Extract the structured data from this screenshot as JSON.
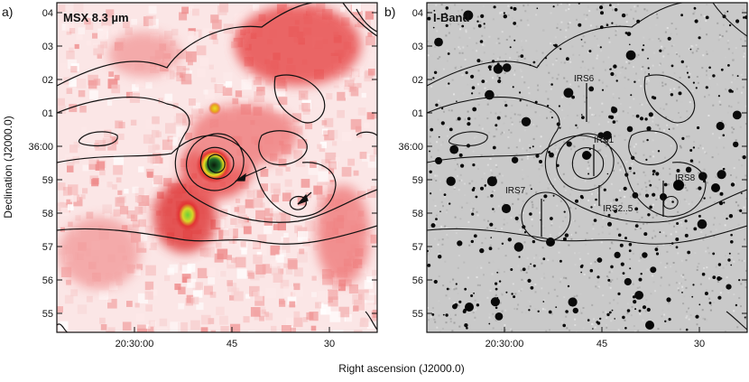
{
  "panels": [
    {
      "id": "a",
      "tag": "a)",
      "title": "MSX 8.3 µm",
      "y_ticks": [
        "04",
        "03",
        "02",
        "01",
        "36:00",
        "59",
        "58",
        "57",
        "56",
        "55"
      ],
      "x_ticks": [
        "20:30:00",
        "45",
        "30"
      ]
    },
    {
      "id": "b",
      "tag": "b)",
      "title": "I-Band",
      "y_ticks": [
        "04",
        "03",
        "02",
        "01",
        "36:00",
        "59",
        "58",
        "57",
        "56",
        "55"
      ],
      "x_ticks": [
        "20:30:00",
        "45",
        "30"
      ],
      "sources": [
        "IRS6",
        "IRS1",
        "IRS7",
        "IRS2..5",
        "IRS8"
      ]
    }
  ],
  "axes": {
    "x_label": "Right ascension (J2000.0)",
    "y_label": "Declination (J2000.0)"
  },
  "colors": {
    "heat_pale": "#fbe6e6",
    "heat_mid": "#f28a8a",
    "heat_strong": "#e23434",
    "heat_peak": "#0a2a10",
    "star_field_bg": "#c9c9c9",
    "contour": "#111111"
  }
}
